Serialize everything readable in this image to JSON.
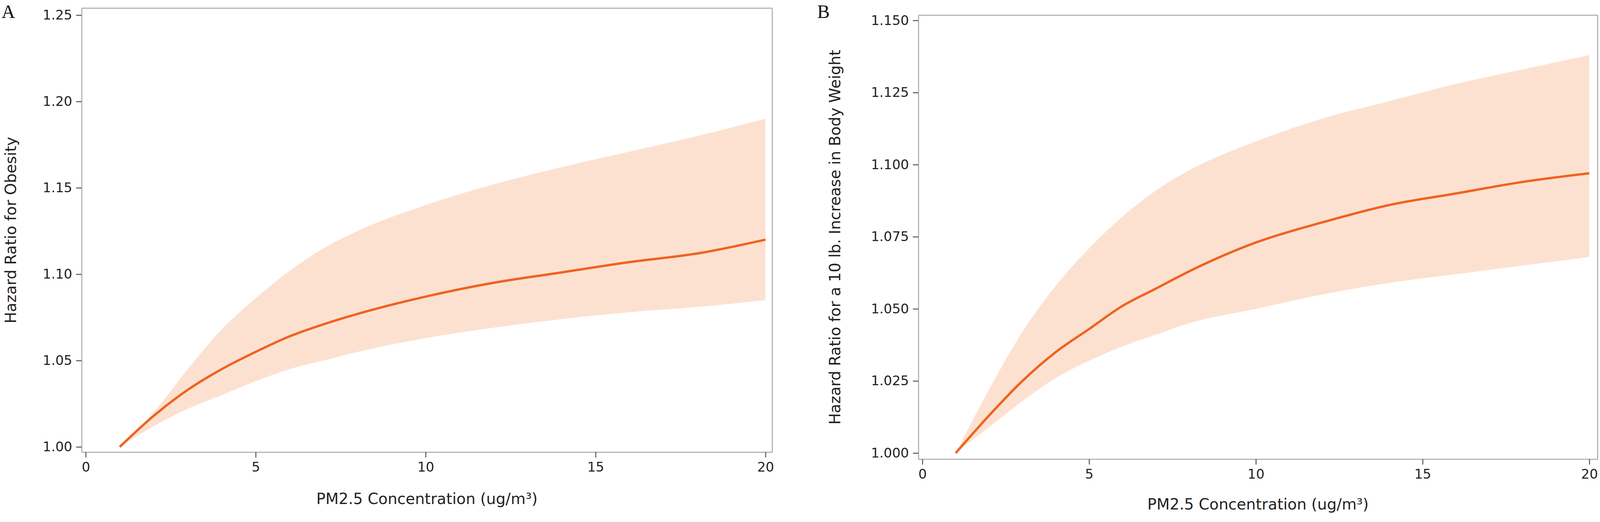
{
  "chart_data": [
    {
      "type": "line",
      "title": "A",
      "xlabel": "PM2.5 Concentration (ug/m³)",
      "ylabel": "Hazard Ratio for Obesity",
      "x": [
        1,
        2,
        3,
        4,
        5,
        6,
        7,
        8,
        10,
        12,
        14,
        16,
        18,
        20
      ],
      "values": [
        1.0,
        1.018,
        1.033,
        1.045,
        1.055,
        1.064,
        1.071,
        1.077,
        1.087,
        1.095,
        1.101,
        1.107,
        1.112,
        1.12
      ],
      "ci_lower": [
        1.0,
        1.012,
        1.022,
        1.03,
        1.038,
        1.045,
        1.05,
        1.055,
        1.063,
        1.069,
        1.074,
        1.078,
        1.081,
        1.085
      ],
      "ci_upper": [
        1.0,
        1.02,
        1.045,
        1.068,
        1.086,
        1.102,
        1.115,
        1.125,
        1.14,
        1.152,
        1.162,
        1.171,
        1.18,
        1.19
      ],
      "color": "#ef6220",
      "xlim": [
        -0.12,
        20.2
      ],
      "ylim": [
        0.997,
        1.254
      ],
      "xticks": [
        0,
        5,
        10,
        15,
        20
      ],
      "yticks": [
        {
          "value": 1.0,
          "label": "1.00"
        },
        {
          "value": 1.05,
          "label": "1.05"
        },
        {
          "value": 1.1,
          "label": "1.10"
        },
        {
          "value": 1.15,
          "label": "1.15"
        },
        {
          "value": 1.2,
          "label": "1.20"
        },
        {
          "value": 1.25,
          "label": "1.25"
        }
      ]
    },
    {
      "type": "line",
      "title": "B",
      "xlabel": "PM2.5 Concentration (ug/m³)",
      "ylabel": "Hazard Ratio for a 10 lb. Increase in Body Weight",
      "x": [
        1,
        2,
        3,
        4,
        5,
        6,
        7,
        8,
        10,
        12,
        14,
        16,
        18,
        20
      ],
      "values": [
        1.0,
        1.013,
        1.025,
        1.035,
        1.043,
        1.051,
        1.057,
        1.063,
        1.073,
        1.08,
        1.086,
        1.09,
        1.094,
        1.097
      ],
      "ci_lower": [
        1.0,
        1.009,
        1.018,
        1.026,
        1.032,
        1.037,
        1.041,
        1.045,
        1.05,
        1.055,
        1.059,
        1.062,
        1.065,
        1.068
      ],
      "ci_upper": [
        1.0,
        1.022,
        1.042,
        1.058,
        1.071,
        1.082,
        1.091,
        1.098,
        1.108,
        1.116,
        1.122,
        1.128,
        1.133,
        1.138
      ],
      "color": "#ef6220",
      "xlim": [
        -0.12,
        20.25
      ],
      "ylim": [
        0.9979,
        1.1518
      ],
      "xticks": [
        0,
        5,
        10,
        15,
        20
      ],
      "yticks": [
        {
          "value": 1.0,
          "label": "1.000"
        },
        {
          "value": 1.025,
          "label": "1.025"
        },
        {
          "value": 1.05,
          "label": "1.050"
        },
        {
          "value": 1.075,
          "label": "1.075"
        },
        {
          "value": 1.1,
          "label": "1.100"
        },
        {
          "value": 1.125,
          "label": "1.125"
        },
        {
          "value": 1.15,
          "label": "1.150"
        }
      ]
    }
  ]
}
